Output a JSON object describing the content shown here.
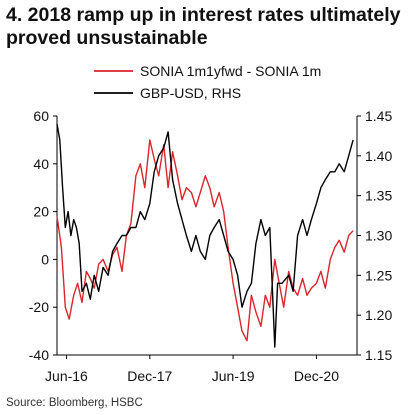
{
  "title": "4. 2018 ramp up in interest rates ultimately proved unsustainable",
  "source": "Source: Bloomberg, HSBC",
  "chart_data": {
    "type": "line",
    "title": "4. 2018 ramp up in interest rates ultimately proved unsustainable",
    "grid": false,
    "legend_position": "top-center",
    "x_tick_labels": [
      "Jun-16",
      "Dec-17",
      "Jun-19",
      "Dec-20"
    ],
    "x_tick_dates": [
      2016.42,
      2017.92,
      2019.42,
      2020.92
    ],
    "xlim": [
      2016.25,
      2021.65
    ],
    "left_axis": {
      "ylim": [
        -40,
        60
      ],
      "ticks": [
        -40,
        -20,
        0,
        20,
        40,
        60
      ]
    },
    "right_axis": {
      "ylim": [
        1.15,
        1.45
      ],
      "ticks": [
        1.15,
        1.2,
        1.25,
        1.3,
        1.35,
        1.4,
        1.45
      ],
      "tick_labels": [
        "1.15",
        "1.20",
        "1.25",
        "1.30",
        "1.35",
        "1.40",
        "1.45"
      ]
    },
    "series": [
      {
        "name": "SONIA 1m1yfwd - SONIA 1m",
        "axis": "left",
        "color": "#d9252b",
        "x": [
          2016.25,
          2016.33,
          2016.4,
          2016.47,
          2016.55,
          2016.62,
          2016.7,
          2016.78,
          2016.85,
          2016.92,
          2017.0,
          2017.08,
          2017.17,
          2017.25,
          2017.33,
          2017.42,
          2017.5,
          2017.58,
          2017.67,
          2017.75,
          2017.83,
          2017.92,
          2018.0,
          2018.08,
          2018.17,
          2018.25,
          2018.33,
          2018.42,
          2018.5,
          2018.58,
          2018.67,
          2018.75,
          2018.83,
          2018.92,
          2019.0,
          2019.08,
          2019.17,
          2019.25,
          2019.33,
          2019.42,
          2019.5,
          2019.58,
          2019.67,
          2019.75,
          2019.83,
          2019.92,
          2020.0,
          2020.08,
          2020.17,
          2020.25,
          2020.33,
          2020.42,
          2020.5,
          2020.58,
          2020.67,
          2020.75,
          2020.83,
          2020.92,
          2021.0,
          2021.08,
          2021.17,
          2021.25,
          2021.33,
          2021.42,
          2021.5,
          2021.58
        ],
        "values": [
          18,
          5,
          -20,
          -25,
          -15,
          -10,
          -18,
          -5,
          -8,
          -12,
          -2,
          0,
          -5,
          2,
          5,
          -5,
          10,
          15,
          35,
          40,
          30,
          50,
          42,
          35,
          48,
          30,
          45,
          35,
          25,
          30,
          28,
          22,
          28,
          35,
          30,
          22,
          28,
          20,
          5,
          -10,
          -20,
          -30,
          -34,
          -15,
          -22,
          -28,
          -15,
          -20,
          0,
          -10,
          -20,
          -5,
          -12,
          -15,
          -8,
          -15,
          -12,
          -10,
          -5,
          -12,
          0,
          5,
          8,
          3,
          10,
          12
        ]
      },
      {
        "name": "GBP-USD, RHS",
        "axis": "right",
        "color": "#000000",
        "x": [
          2016.25,
          2016.3,
          2016.35,
          2016.4,
          2016.45,
          2016.5,
          2016.55,
          2016.6,
          2016.65,
          2016.7,
          2016.78,
          2016.85,
          2016.92,
          2017.0,
          2017.08,
          2017.17,
          2017.25,
          2017.33,
          2017.42,
          2017.5,
          2017.58,
          2017.67,
          2017.75,
          2017.83,
          2017.92,
          2018.0,
          2018.08,
          2018.17,
          2018.25,
          2018.33,
          2018.42,
          2018.5,
          2018.58,
          2018.67,
          2018.75,
          2018.83,
          2018.92,
          2019.0,
          2019.08,
          2019.17,
          2019.25,
          2019.33,
          2019.42,
          2019.5,
          2019.58,
          2019.67,
          2019.75,
          2019.83,
          2019.92,
          2020.0,
          2020.08,
          2020.17,
          2020.22,
          2020.3,
          2020.42,
          2020.5,
          2020.58,
          2020.67,
          2020.75,
          2020.83,
          2020.92,
          2021.0,
          2021.08,
          2021.17,
          2021.25,
          2021.33,
          2021.42,
          2021.5,
          2021.58
        ],
        "values": [
          1.44,
          1.42,
          1.36,
          1.31,
          1.33,
          1.3,
          1.32,
          1.31,
          1.29,
          1.23,
          1.24,
          1.22,
          1.25,
          1.23,
          1.26,
          1.25,
          1.28,
          1.29,
          1.3,
          1.3,
          1.31,
          1.31,
          1.33,
          1.32,
          1.34,
          1.38,
          1.4,
          1.41,
          1.43,
          1.37,
          1.34,
          1.32,
          1.3,
          1.28,
          1.3,
          1.28,
          1.27,
          1.3,
          1.31,
          1.32,
          1.3,
          1.28,
          1.27,
          1.25,
          1.21,
          1.23,
          1.24,
          1.29,
          1.32,
          1.3,
          1.31,
          1.16,
          1.24,
          1.24,
          1.25,
          1.23,
          1.3,
          1.32,
          1.3,
          1.32,
          1.34,
          1.36,
          1.37,
          1.38,
          1.38,
          1.39,
          1.38,
          1.4,
          1.42
        ]
      }
    ]
  }
}
